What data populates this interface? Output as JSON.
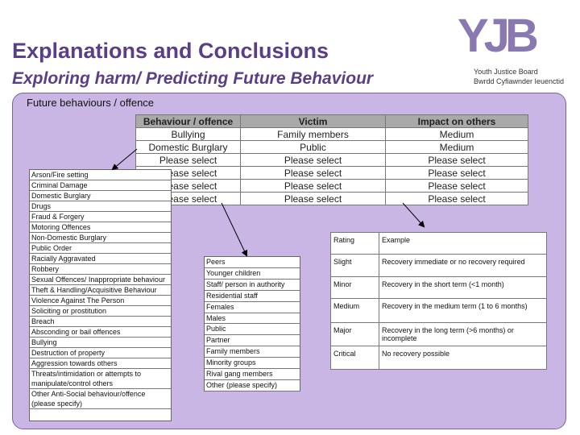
{
  "header": {
    "title": "Explanations and Conclusions",
    "subtitle": "Exploring harm/ Predicting Future Behaviour"
  },
  "logo": {
    "mark": "YJB",
    "line1": "Youth Justice Board",
    "line2": "Bwrdd Cyfiawnder Ieuenctid"
  },
  "panel": {
    "label": "Future behaviours / offence"
  },
  "table": {
    "columns": [
      "Behaviour / offence",
      "Victim",
      "Impact on others"
    ],
    "rows": [
      [
        "Bullying",
        "Family members",
        "Medium"
      ],
      [
        "Domestic Burglary",
        "Public",
        "Medium"
      ],
      [
        "Please select",
        "Please select",
        "Please select"
      ],
      [
        "Please select",
        "Please select",
        "Please select"
      ],
      [
        "Please select",
        "Please select",
        "Please select"
      ],
      [
        "Please select",
        "Please select",
        "Please select"
      ]
    ]
  },
  "offences": [
    "Arson/Fire setting",
    "Criminal Damage",
    "Domestic Burglary",
    "Drugs",
    "Fraud & Forgery",
    "Motoring Offences",
    "Non-Domestic Burglary",
    "Public Order",
    "Racially Aggravated",
    "Robbery",
    "Sexual Offences/ Inappropriate behaviour",
    "Theft & Handling/Acquisitive Behaviour",
    "Violence Against The Person",
    "Soliciting or prostitution",
    "Breach",
    "Absconding or bail offences",
    "Bullying",
    "Destruction of property",
    "Aggression towards others",
    "Threats/intimidation or attempts to manipulate/control others",
    "Other Anti-Social behaviour/offence (please specify)"
  ],
  "victims": [
    "Peers",
    "Younger children",
    "Staff/ person in authority",
    "Residential staff",
    "Females",
    "Males",
    "Public",
    "Partner",
    "Family members",
    "Minority groups",
    "Rival gang members",
    "Other (please specify)"
  ],
  "ratings": {
    "columns": [
      "Rating",
      "Example"
    ],
    "rows": [
      [
        "Slight",
        "Recovery immediate or no recovery required"
      ],
      [
        "Minor",
        "Recovery in the short term (<1 month)"
      ],
      [
        "Medium",
        "Recovery in the medium term (1 to 6 months)"
      ],
      [
        "Major",
        "Recovery in the long term (>6 months) or incomplete"
      ],
      [
        "Critical",
        "No recovery possible"
      ]
    ]
  }
}
